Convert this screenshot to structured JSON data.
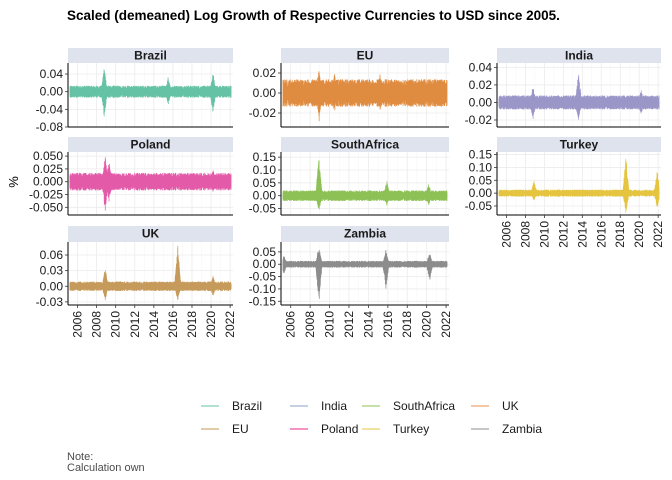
{
  "chart_data": {
    "type": "line",
    "title": "Scaled (demeaned) Log Growth of Respective Currencies to USD since 2005.",
    "ylabel": "%",
    "xlabel": "",
    "x_ticks": [
      "2006",
      "2008",
      "2010",
      "2012",
      "2014",
      "2016",
      "2018",
      "2020",
      "2022"
    ],
    "x_range": [
      2005,
      2022.3
    ],
    "grid": true,
    "legend_position": "bottom",
    "note": [
      "Note:",
      "Calculation own"
    ],
    "legend": [
      {
        "name": "Brazil",
        "color": "#66c2a5"
      },
      {
        "name": "EU",
        "color": "#c59a4f"
      },
      {
        "name": "India",
        "color": "#8da0cb"
      },
      {
        "name": "Poland",
        "color": "#e7298a"
      },
      {
        "name": "SouthAfrica",
        "color": "#8dc055"
      },
      {
        "name": "Turkey",
        "color": "#e5c540"
      },
      {
        "name": "UK",
        "color": "#e59050"
      },
      {
        "name": "Zambia",
        "color": "#8c8c8c"
      }
    ],
    "panels": [
      {
        "name": "Brazil",
        "color": "#66c2a5",
        "ylim": [
          -0.08,
          0.065
        ],
        "yticks": [
          "0.04",
          "0.00",
          "-0.04",
          "-0.08"
        ],
        "ytick_values": [
          0.04,
          0.0,
          -0.04,
          -0.08
        ],
        "range_base": 0.012,
        "events": [
          [
            2008.8,
            0.055,
            -0.06
          ],
          [
            2020.2,
            0.045,
            -0.05
          ],
          [
            2015.5,
            0.035,
            -0.03
          ]
        ]
      },
      {
        "name": "EU",
        "color": "#e08c40",
        "ylim": [
          -0.034,
          0.03
        ],
        "yticks": [
          "0.02",
          "0.00",
          "-0.02"
        ],
        "ytick_values": [
          0.02,
          0.0,
          -0.02
        ],
        "range_base": 0.012,
        "events": [
          [
            2008.9,
            0.025,
            -0.03
          ],
          [
            2010.5,
            0.02,
            -0.02
          ],
          [
            2015.2,
            0.02,
            -0.018
          ]
        ]
      },
      {
        "name": "India",
        "color": "#9a96c8",
        "ylim": [
          -0.028,
          0.045
        ],
        "yticks": [
          "0.04",
          "0.02",
          "0.00",
          "-0.02"
        ],
        "ytick_values": [
          0.04,
          0.02,
          0.0,
          -0.02
        ],
        "range_base": 0.007,
        "events": [
          [
            2013.6,
            0.035,
            -0.022
          ],
          [
            2008.8,
            0.02,
            -0.02
          ],
          [
            2020.2,
            0.015,
            -0.014
          ]
        ]
      },
      {
        "name": "Poland",
        "color": "#e35aa8",
        "ylim": [
          -0.065,
          0.058
        ],
        "yticks": [
          "0.050",
          "0.025",
          "0.000",
          "-0.025",
          "-0.050"
        ],
        "ytick_values": [
          0.05,
          0.025,
          0.0,
          -0.025,
          -0.05
        ],
        "range_base": 0.015,
        "events": [
          [
            2008.9,
            0.05,
            -0.062
          ],
          [
            2009.3,
            0.04,
            -0.04
          ],
          [
            2020.2,
            0.025,
            -0.02
          ]
        ]
      },
      {
        "name": "SouthAfrica",
        "color": "#8dc055",
        "ylim": [
          -0.075,
          0.17
        ],
        "yticks": [
          "0.15",
          "0.10",
          "0.05",
          "0.00",
          "-0.05"
        ],
        "ytick_values": [
          0.15,
          0.1,
          0.05,
          0.0,
          -0.05
        ],
        "range_base": 0.018,
        "events": [
          [
            2008.9,
            0.16,
            -0.06
          ],
          [
            2015.9,
            0.06,
            -0.04
          ],
          [
            2020.2,
            0.05,
            -0.04
          ]
        ]
      },
      {
        "name": "Turkey",
        "color": "#e5c540",
        "ylim": [
          -0.085,
          0.16
        ],
        "yticks": [
          "0.15",
          "0.10",
          "0.05",
          "0.00",
          "-0.05"
        ],
        "ytick_values": [
          0.15,
          0.1,
          0.05,
          0.0,
          -0.05
        ],
        "range_base": 0.012,
        "events": [
          [
            2018.6,
            0.15,
            -0.08
          ],
          [
            2021.9,
            0.09,
            -0.06
          ],
          [
            2008.9,
            0.05,
            -0.03
          ]
        ]
      },
      {
        "name": "UK",
        "color": "#c59a5a",
        "ylim": [
          -0.036,
          0.085
        ],
        "yticks": [
          "0.06",
          "0.03",
          "0.00",
          "-0.03"
        ],
        "ytick_values": [
          0.06,
          0.03,
          0.0,
          -0.03
        ],
        "range_base": 0.008,
        "events": [
          [
            2016.5,
            0.082,
            -0.028
          ],
          [
            2008.9,
            0.035,
            -0.028
          ],
          [
            2020.2,
            0.02,
            -0.02
          ]
        ]
      },
      {
        "name": "Zambia",
        "color": "#8c8c8c",
        "ylim": [
          -0.165,
          0.09
        ],
        "yticks": [
          "0.05",
          "0.00",
          "-0.05",
          "-0.10",
          "-0.15"
        ],
        "ytick_values": [
          0.05,
          0.0,
          -0.05,
          -0.1,
          -0.15
        ],
        "range_base": 0.012,
        "events": [
          [
            2008.9,
            0.075,
            -0.16
          ],
          [
            2015.8,
            0.06,
            -0.1
          ],
          [
            2020.3,
            0.05,
            -0.07
          ],
          [
            2005.3,
            0.04,
            -0.04
          ]
        ]
      }
    ]
  }
}
